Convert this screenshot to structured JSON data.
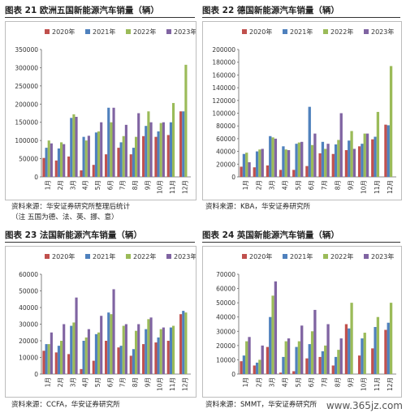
{
  "palette": {
    "2020年": "#c0504d",
    "2021年": "#4f81bd",
    "2022年": "#9bbb59",
    "2023年": "#8064a2"
  },
  "watermark": "www.365jz.com",
  "panels": [
    {
      "title": "图表 21 欧洲五国新能源汽车销量（辆）",
      "source": "资料来源：华安证券研究所整理后统计",
      "note": "（注 五国为德、法、英、挪、意）"
    },
    {
      "title": "图表 22 德国新能源汽车销量（辆）",
      "source": "资料来源：KBA，华安证券研究所",
      "note": ""
    },
    {
      "title": "图表 23 法国新能源汽车销量（辆）",
      "source": "资料来源：CCFA，华安证券研究所",
      "note": ""
    },
    {
      "title": "图表 24 英国新能源汽车销量（辆）",
      "source": "资料来源：SMMT，华安证券研究所",
      "note": ""
    }
  ],
  "chart_data": [
    {
      "type": "bar",
      "title": "图表 21 欧洲五国新能源汽车销量（辆）",
      "categories": [
        "1月",
        "2月",
        "3月",
        "4月",
        "5月",
        "6月",
        "7月",
        "8月",
        "9月",
        "10月",
        "11月",
        "12月"
      ],
      "ylim": [
        0,
        350000
      ],
      "yticks": [
        0,
        50000,
        100000,
        150000,
        200000,
        250000,
        300000,
        350000
      ],
      "grid": false,
      "legend": "top",
      "series": [
        {
          "name": "2020年",
          "values": [
            52000,
            45000,
            56000,
            18000,
            33000,
            62000,
            80000,
            62000,
            112000,
            110000,
            115000,
            180000
          ]
        },
        {
          "name": "2021年",
          "values": [
            80000,
            78000,
            162000,
            110000,
            122000,
            190000,
            95000,
            80000,
            140000,
            125000,
            150000,
            180000
          ]
        },
        {
          "name": "2022年",
          "values": [
            100000,
            95000,
            172000,
            100000,
            125000,
            150000,
            112000,
            110000,
            180000,
            148000,
            203000,
            308000
          ]
        },
        {
          "name": "2023年",
          "values": [
            92000,
            90000,
            165000,
            113000,
            150000,
            190000,
            143000,
            175000,
            150000,
            150000,
            0,
            0
          ]
        }
      ]
    },
    {
      "type": "bar",
      "title": "图表 22 德国新能源汽车销量（辆）",
      "categories": [
        "1月",
        "2月",
        "3月",
        "4月",
        "5月",
        "6月",
        "7月",
        "8月",
        "9月",
        "10月",
        "11月",
        "12月"
      ],
      "ylim": [
        0,
        200000
      ],
      "yticks": [
        0,
        20000,
        40000,
        60000,
        80000,
        100000,
        120000,
        140000,
        160000,
        180000,
        200000
      ],
      "grid": false,
      "legend": "top",
      "series": [
        {
          "name": "2020年",
          "values": [
            16000,
            15000,
            18000,
            11000,
            11000,
            17000,
            37000,
            36000,
            42000,
            48000,
            59000,
            82000
          ]
        },
        {
          "name": "2021年",
          "values": [
            36000,
            40000,
            64000,
            48000,
            52000,
            110000,
            55000,
            51000,
            57000,
            52000,
            63000,
            81000
          ]
        },
        {
          "name": "2022年",
          "values": [
            38000,
            43000,
            62000,
            43000,
            54000,
            50000,
            44000,
            58000,
            72000,
            68000,
            102000,
            174000
          ]
        },
        {
          "name": "2023年",
          "values": [
            23000,
            44000,
            60000,
            42000,
            55000,
            68000,
            52000,
            100000,
            44000,
            68000,
            0,
            0
          ]
        }
      ]
    },
    {
      "type": "bar",
      "title": "图表 23 法国新能源汽车销量（辆）",
      "categories": [
        "1月",
        "2月",
        "3月",
        "4月",
        "5月",
        "6月",
        "7月",
        "8月",
        "9月",
        "10月",
        "11月",
        "12月"
      ],
      "ylim": [
        0,
        60000
      ],
      "yticks": [
        0,
        10000,
        20000,
        30000,
        40000,
        50000,
        60000
      ],
      "grid": false,
      "legend": "top",
      "series": [
        {
          "name": "2020年",
          "values": [
            14000,
            13000,
            12000,
            3000,
            8000,
            20000,
            16000,
            11000,
            18000,
            19000,
            20000,
            36000
          ]
        },
        {
          "name": "2021年",
          "values": [
            18000,
            17000,
            29000,
            20000,
            24000,
            37000,
            17000,
            15000,
            27000,
            22000,
            28000,
            38000
          ]
        },
        {
          "name": "2022年",
          "values": [
            18000,
            20000,
            31000,
            22000,
            25000,
            36000,
            29000,
            26000,
            33000,
            27000,
            29000,
            37000
          ]
        },
        {
          "name": "2023年",
          "values": [
            25000,
            30000,
            46000,
            27000,
            35000,
            51000,
            30000,
            30000,
            34000,
            28000,
            0,
            0
          ]
        }
      ]
    },
    {
      "type": "bar",
      "title": "图表 24 英国新能源汽车销量（辆）",
      "categories": [
        "1月",
        "2月",
        "3月",
        "4月",
        "5月",
        "6月",
        "7月",
        "8月",
        "9月",
        "10月",
        "11月",
        "12月"
      ],
      "ylim": [
        0,
        70000
      ],
      "yticks": [
        0,
        10000,
        20000,
        30000,
        40000,
        50000,
        60000,
        70000
      ],
      "grid": false,
      "legend": "top",
      "series": [
        {
          "name": "2020年",
          "values": [
            9000,
            6000,
            19000,
            1000,
            2000,
            11000,
            12000,
            6000,
            35000,
            13000,
            18000,
            31000
          ]
        },
        {
          "name": "2021年",
          "values": [
            13000,
            8000,
            40000,
            12000,
            19000,
            21000,
            16000,
            12000,
            32000,
            25000,
            33000,
            36000
          ]
        },
        {
          "name": "2022年",
          "values": [
            23000,
            10000,
            55000,
            23000,
            23000,
            30000,
            20000,
            17000,
            50000,
            29000,
            40000,
            50000
          ]
        },
        {
          "name": "2023年",
          "values": [
            26000,
            20000,
            65000,
            25000,
            34000,
            45000,
            35000,
            25000,
            0,
            0,
            0,
            0
          ]
        }
      ]
    }
  ]
}
